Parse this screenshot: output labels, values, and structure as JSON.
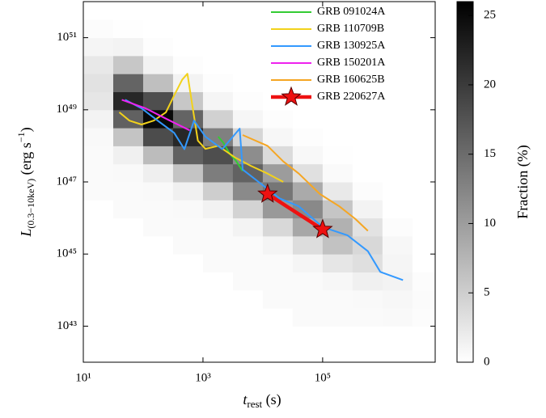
{
  "chart_data": {
    "type": "line",
    "xlabel": [
      "t",
      "rest",
      " (s)"
    ],
    "ylabel": [
      "L",
      "(0.3−10keV)",
      " (erg s",
      "−1",
      ")"
    ],
    "xscale": "log",
    "yscale": "log",
    "xlim": [
      10,
      7600000
    ],
    "ylim": [
      1e+42,
      1e+52
    ],
    "xticks": [
      {
        "value": 10,
        "label": "10¹"
      },
      {
        "value": 1000,
        "label": "10³"
      },
      {
        "value": 100000,
        "label": "10⁵"
      }
    ],
    "yticks": [
      {
        "value": 1e+43,
        "label": "10⁴³"
      },
      {
        "value": 1e+45,
        "label": "10⁴⁵"
      },
      {
        "value": 1e+47,
        "label": "10⁴⁷"
      },
      {
        "value": 1e+49,
        "label": "10⁴⁹"
      },
      {
        "value": 1e+51,
        "label": "10⁵¹"
      }
    ],
    "legend": "upper right",
    "heatmap": {
      "clabel": "Fraction (%)",
      "clim": [
        0,
        26
      ],
      "cticks": [
        0,
        5,
        10,
        15,
        20,
        25
      ],
      "xbins": [
        10,
        31.62,
        100,
        316.2,
        1000,
        3162,
        10000,
        31620,
        100000,
        316200,
        1000000,
        3162000,
        10000000
      ],
      "ybins": [
        1e+43,
        3.162e+43,
        1e+44,
        3.162e+44,
        1e+45,
        3.162e+45,
        1e+46,
        3.162e+46,
        1e+47,
        3.162e+47,
        1e+48,
        3.162e+48,
        1e+49,
        3.162e+49,
        1e+50,
        3.162e+50,
        1e+51,
        3.162e+51,
        1e+52
      ],
      "z": [
        [
          0,
          0,
          0,
          0,
          0,
          0,
          0,
          0.5,
          0.5,
          0.5,
          0.6,
          1.2,
          2.6,
          3,
          2.3,
          1,
          0.3,
          0
        ],
        [
          0,
          0,
          0,
          0,
          0,
          0,
          0.5,
          0.5,
          0.6,
          1.5,
          6,
          16.1,
          22,
          15.8,
          5.7,
          1.2,
          0.1,
          0
        ],
        [
          0,
          0,
          0,
          0,
          0,
          0.5,
          0.5,
          0.6,
          1.6,
          6.8,
          18.3,
          25,
          18,
          6.5,
          1.3,
          0.2,
          0,
          0
        ],
        [
          0,
          0,
          0,
          0,
          0.5,
          0.5,
          0.6,
          1.5,
          6,
          16.1,
          22,
          15.8,
          5.7,
          1.2,
          0.2,
          0,
          0,
          0
        ],
        [
          0,
          0,
          0,
          0.5,
          0.5,
          0.5,
          1.3,
          5,
          13.3,
          18,
          13,
          4.7,
          1,
          0.2,
          0,
          0,
          0,
          0
        ],
        [
          0,
          0,
          0.5,
          0.5,
          0.5,
          1.2,
          4.5,
          11.9,
          16,
          11.6,
          4.2,
          0.9,
          0.2,
          0,
          0,
          0,
          0,
          0
        ],
        [
          0,
          0.5,
          0.5,
          0.5,
          1.1,
          4,
          10.4,
          14,
          10.1,
          3.7,
          0.8,
          0.2,
          0,
          0,
          0,
          0,
          0,
          0
        ],
        [
          0.5,
          0.5,
          0.5,
          1,
          3.5,
          9,
          12,
          8.7,
          3.2,
          0.7,
          0.2,
          0,
          0,
          0,
          0,
          0,
          0,
          0
        ],
        [
          0.5,
          0.5,
          0.8,
          2.5,
          6.2,
          8,
          5.9,
          2.2,
          0.5,
          0.1,
          0,
          0,
          0,
          0,
          0,
          0,
          0,
          0
        ],
        [
          0.5,
          0.6,
          1.5,
          3.3,
          4,
          3,
          1.2,
          0.3,
          0,
          0,
          0,
          0,
          0,
          0,
          0,
          0,
          0,
          0
        ],
        [
          0.6,
          0.8,
          1.2,
          1,
          0.8,
          0.3,
          0,
          0,
          0,
          0,
          0,
          0,
          0,
          0,
          0,
          0,
          0,
          0
        ],
        [
          0.3,
          0.4,
          0.3,
          0,
          0,
          0,
          0,
          0,
          0,
          0,
          0,
          0,
          0,
          0,
          0,
          0,
          0,
          0
        ]
      ]
    },
    "series": [
      {
        "name": "GRB 091024A",
        "color": "#33cc33",
        "x": [
          1800,
          2200,
          2800,
          3500,
          4600
        ],
        "values": [
          1.8e+48,
          1.2e+48,
          6e+47,
          4e+47,
          2e+47
        ]
      },
      {
        "name": "GRB 110709B",
        "color": "#f2d21b",
        "x": [
          40,
          59,
          94,
          150,
          240,
          330,
          450,
          550,
          660,
          820,
          1100,
          1800,
          3400,
          6300,
          12000,
          22000
        ],
        "values": [
          8.5e+48,
          5e+48,
          3.9e+48,
          5e+48,
          8.5e+48,
          2.5e+49,
          6.9e+49,
          1e+50,
          1.4e+49,
          1.4e+48,
          8.2e+47,
          1e+48,
          4.8e+47,
          2.8e+47,
          1.7e+47,
          1e+47
        ]
      },
      {
        "name": "GRB 130925A",
        "color": "#3399ff",
        "x": [
          50,
          94,
          175,
          330,
          490,
          710,
          1100,
          2100,
          4100,
          4600,
          8500,
          19000,
          40000,
          100000,
          260000,
          570000,
          920000,
          2200000
        ],
        "values": [
          1.9e+49,
          1.1e+49,
          5e+48,
          2.3e+48,
          8.1e+47,
          5e+48,
          1.8e+48,
          8.1e+47,
          3e+48,
          2.2e+47,
          1e+47,
          3.5e+46,
          2.1e+46,
          5.6e+45,
          3.3e+45,
          1.2e+45,
          3.2e+44,
          1.9e+44
        ]
      },
      {
        "name": "GRB 150201A",
        "color": "#ee22ee",
        "x": [
          44,
          110,
          280,
          600
        ],
        "values": [
          1.9e+49,
          1.1e+49,
          5e+48,
          2.7e+48
        ]
      },
      {
        "name": "GRB 160625B",
        "color": "#f5a623",
        "x": [
          4600,
          12000,
          22000,
          40000,
          90000,
          190000,
          350000,
          570000
        ],
        "values": [
          2e+48,
          1e+48,
          3.7e+47,
          1.7e+47,
          4.6e+46,
          2.1e+46,
          9.5e+45,
          4.4e+45
        ]
      },
      {
        "name": "GRB 220627A",
        "color": "#ee1111",
        "marker": "star",
        "x": [
          12000,
          100000
        ],
        "values": [
          4.6e+46,
          4.8e+45
        ]
      }
    ]
  }
}
